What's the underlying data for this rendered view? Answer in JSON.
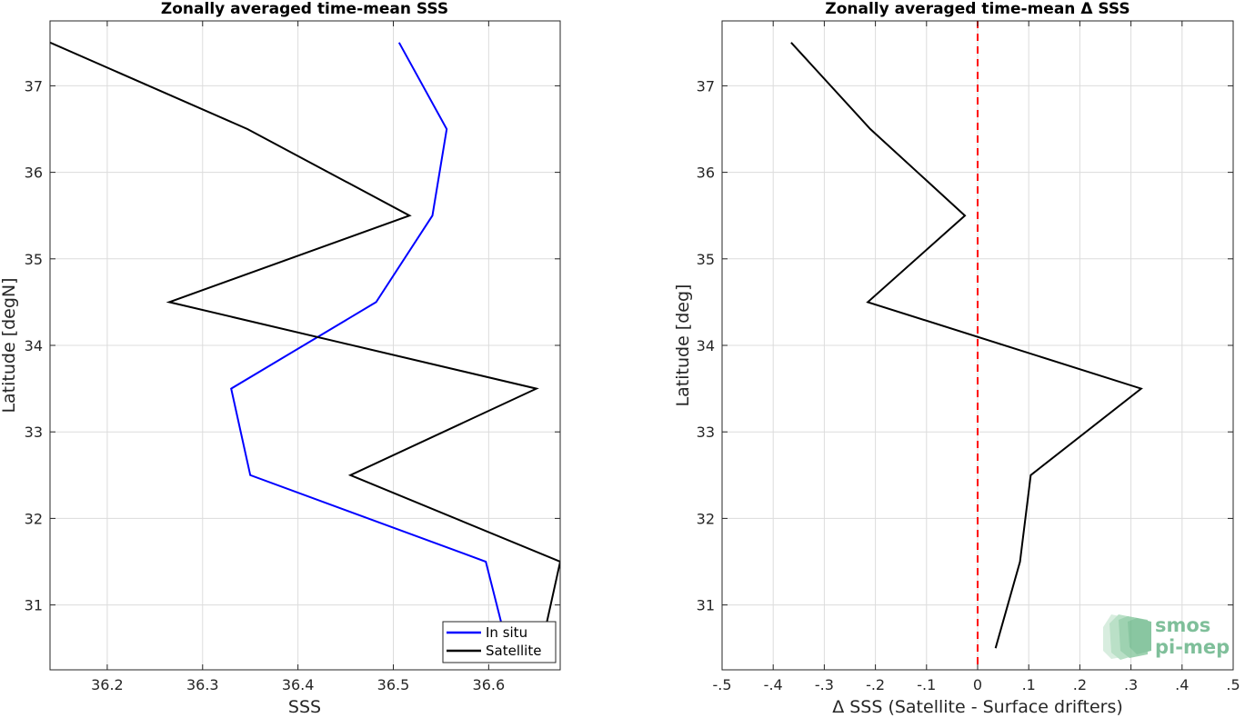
{
  "chart_data": [
    {
      "type": "line",
      "title": "Zonally averaged time-mean SSS",
      "xlabel": "SSS",
      "ylabel": "Latitude [degN]",
      "xlim": [
        36.14,
        36.675
      ],
      "ylim": [
        30.25,
        37.75
      ],
      "xticks": [
        36.2,
        36.3,
        36.4,
        36.5,
        36.6
      ],
      "yticks": [
        31,
        32,
        33,
        34,
        35,
        36,
        37
      ],
      "grid": true,
      "legend_position": "bottom-right",
      "y": [
        30.5,
        31.5,
        32.5,
        33.5,
        34.5,
        35.5,
        36.5,
        37.5
      ],
      "series": [
        {
          "name": "In situ",
          "color": "#0000ff",
          "values": [
            36.62,
            36.597,
            36.35,
            36.33,
            36.482,
            36.541,
            36.556,
            36.506
          ]
        },
        {
          "name": "Satellite",
          "color": "#000000",
          "values": [
            36.655,
            36.675,
            36.455,
            36.65,
            36.265,
            36.517,
            36.347,
            36.14
          ]
        }
      ]
    },
    {
      "type": "line",
      "title": "Zonally averaged time-mean Δ SSS",
      "xlabel": "Δ SSS (Satellite - Surface drifters)",
      "ylabel": "Latitude [deg]",
      "xlim": [
        -0.5,
        0.5
      ],
      "ylim": [
        30.25,
        37.75
      ],
      "xticks": [
        -0.5,
        -0.4,
        -0.3,
        -0.2,
        -0.1,
        0,
        0.1,
        0.2,
        0.3,
        0.4,
        0.5
      ],
      "yticks": [
        31,
        32,
        33,
        34,
        35,
        36,
        37
      ],
      "grid": true,
      "reference_line": {
        "x": 0,
        "color": "#ff0000",
        "style": "dashed"
      },
      "y": [
        30.5,
        31.5,
        32.5,
        33.5,
        34.5,
        35.5,
        36.5,
        37.5
      ],
      "series": [
        {
          "color": "#000000",
          "values": [
            0.035,
            0.083,
            0.104,
            0.32,
            -0.215,
            -0.025,
            -0.21,
            -0.365
          ]
        }
      ]
    }
  ],
  "logo": {
    "line1": "smos",
    "line2": "pi-mep"
  }
}
